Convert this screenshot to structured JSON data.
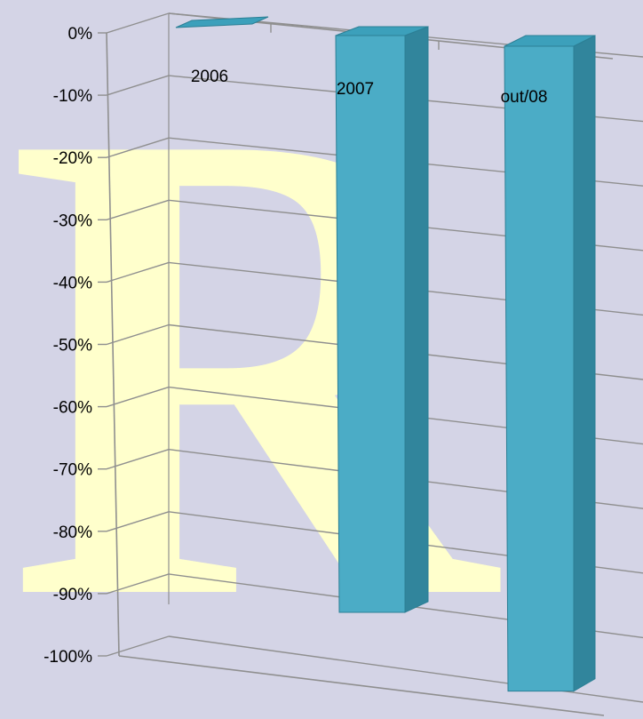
{
  "chart_data": {
    "type": "bar",
    "title": "",
    "xlabel": "",
    "ylabel": "",
    "categories": [
      "2006",
      "2007",
      "out/08"
    ],
    "values": [
      -1,
      -96,
      -99
    ],
    "ylim": [
      -100,
      0
    ],
    "y_tick_labels": [
      "0%",
      "-10%",
      "-20%",
      "-30%",
      "-40%",
      "-50%",
      "-60%",
      "-70%",
      "-80%",
      "-90%",
      "-100%"
    ],
    "grid": true,
    "legend": "none",
    "style": "3d-column"
  },
  "watermark": {
    "letter": "R",
    "color": "#ffffcc"
  },
  "colors": {
    "background": "#d4d4e6",
    "bar_front": "#4bacc6",
    "bar_side": "#31859c",
    "bar_top": "#3ca0bb",
    "gridline": "#8f8f8f"
  }
}
